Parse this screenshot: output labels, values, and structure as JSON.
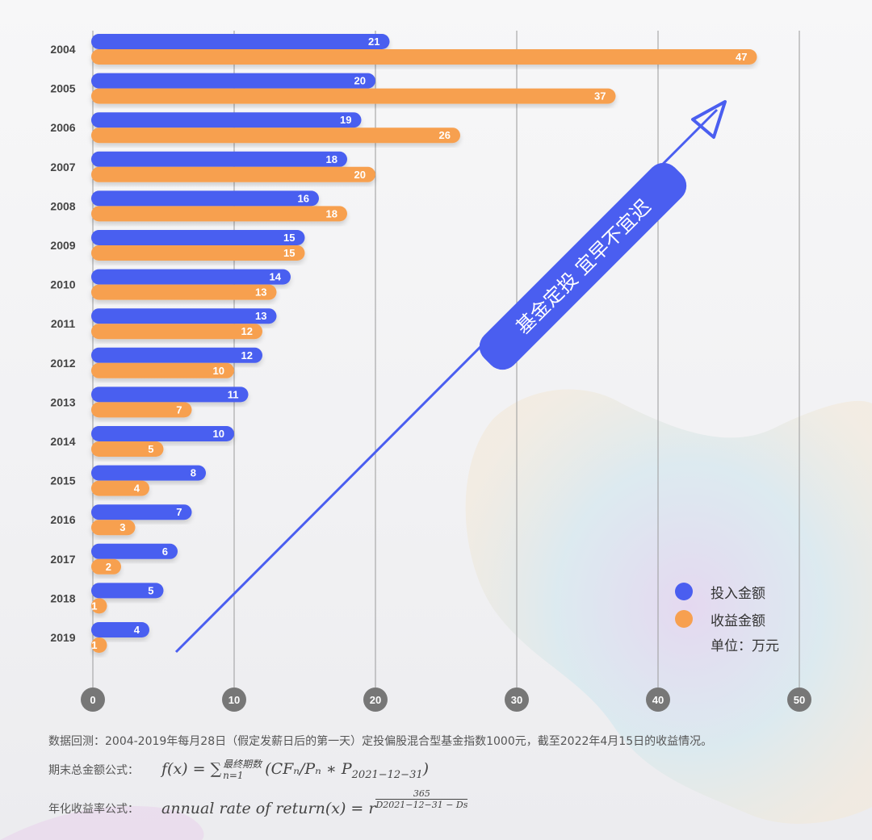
{
  "chart_data": {
    "type": "bar",
    "orientation": "horizontal",
    "categories": [
      "2004",
      "2005",
      "2006",
      "2007",
      "2008",
      "2009",
      "2010",
      "2011",
      "2012",
      "2013",
      "2014",
      "2015",
      "2016",
      "2017",
      "2018",
      "2019"
    ],
    "series": [
      {
        "name": "投入金额",
        "color": "#4a5ef0",
        "values": [
          21,
          20,
          19,
          18,
          16,
          15,
          14,
          13,
          12,
          11,
          10,
          8,
          7,
          6,
          5,
          4
        ]
      },
      {
        "name": "收益金额",
        "color": "#f7a050",
        "values": [
          47,
          37,
          26,
          20,
          18,
          15,
          13,
          12,
          10,
          7,
          5,
          4,
          3,
          2,
          1,
          1
        ]
      }
    ],
    "x_ticks": [
      0,
      10,
      20,
      30,
      40,
      50
    ],
    "xlim": [
      0,
      50
    ],
    "grid": true,
    "legend_position": "bottom-right",
    "unit": "单位：万元",
    "annotation": "基金定投  宜早不宜迟"
  },
  "footer": {
    "note": "数据回测：2004-2019年每月28日（假定发薪日后的第一天）定投偏股混合型基金指数1000元，截至2022年4月15日的收益情况。",
    "formula1_label": "期末总金额公式：",
    "formula2_label": "年化收益率公式：",
    "formula1_lhs": "f(x) = ∑",
    "formula1_sup": "最终期数",
    "formula1_sub": "n=1",
    "formula1_body": "(CFₙ/Pₙ ∗ P",
    "formula1_date": "2021−12−31",
    "formula1_close": ")",
    "formula2_main": "annual rate of return(x) = r",
    "formula2_exp_num": "365",
    "formula2_exp_den": "D2021−12−31 − Ds"
  },
  "colors": {
    "invest": "#4a5ef0",
    "gain": "#f7a050",
    "grid": "#9a9a9a",
    "tick_circle": "#777777"
  }
}
